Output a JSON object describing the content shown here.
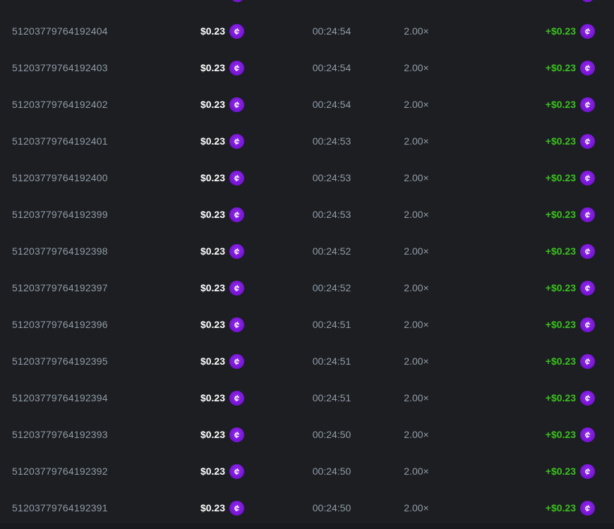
{
  "theme": {
    "background": "#1c1e22",
    "text_muted": "#929ca6",
    "text_primary": "#ffffff",
    "win_green": "#3bc11d",
    "coin_purple": "#7c16dd",
    "bottom_edge": "#17191d"
  },
  "coin": {
    "icon_name": "stake-cash-coin-icon",
    "symbol": "¢"
  },
  "bet_table": {
    "partial_top_row": {
      "amount_coin_visible": true,
      "payout_coin_visible": true
    },
    "rows": [
      {
        "bet_id": "51203779764192404",
        "amount": "$0.23",
        "time": "00:24:54",
        "multiplier": "2.00×",
        "payout": "+$0.23"
      },
      {
        "bet_id": "51203779764192403",
        "amount": "$0.23",
        "time": "00:24:54",
        "multiplier": "2.00×",
        "payout": "+$0.23"
      },
      {
        "bet_id": "51203779764192402",
        "amount": "$0.23",
        "time": "00:24:54",
        "multiplier": "2.00×",
        "payout": "+$0.23"
      },
      {
        "bet_id": "51203779764192401",
        "amount": "$0.23",
        "time": "00:24:53",
        "multiplier": "2.00×",
        "payout": "+$0.23"
      },
      {
        "bet_id": "51203779764192400",
        "amount": "$0.23",
        "time": "00:24:53",
        "multiplier": "2.00×",
        "payout": "+$0.23"
      },
      {
        "bet_id": "51203779764192399",
        "amount": "$0.23",
        "time": "00:24:53",
        "multiplier": "2.00×",
        "payout": "+$0.23"
      },
      {
        "bet_id": "51203779764192398",
        "amount": "$0.23",
        "time": "00:24:52",
        "multiplier": "2.00×",
        "payout": "+$0.23"
      },
      {
        "bet_id": "51203779764192397",
        "amount": "$0.23",
        "time": "00:24:52",
        "multiplier": "2.00×",
        "payout": "+$0.23"
      },
      {
        "bet_id": "51203779764192396",
        "amount": "$0.23",
        "time": "00:24:51",
        "multiplier": "2.00×",
        "payout": "+$0.23"
      },
      {
        "bet_id": "51203779764192395",
        "amount": "$0.23",
        "time": "00:24:51",
        "multiplier": "2.00×",
        "payout": "+$0.23"
      },
      {
        "bet_id": "51203779764192394",
        "amount": "$0.23",
        "time": "00:24:51",
        "multiplier": "2.00×",
        "payout": "+$0.23"
      },
      {
        "bet_id": "51203779764192393",
        "amount": "$0.23",
        "time": "00:24:50",
        "multiplier": "2.00×",
        "payout": "+$0.23"
      },
      {
        "bet_id": "51203779764192392",
        "amount": "$0.23",
        "time": "00:24:50",
        "multiplier": "2.00×",
        "payout": "+$0.23"
      },
      {
        "bet_id": "51203779764192391",
        "amount": "$0.23",
        "time": "00:24:50",
        "multiplier": "2.00×",
        "payout": "+$0.23"
      }
    ]
  }
}
